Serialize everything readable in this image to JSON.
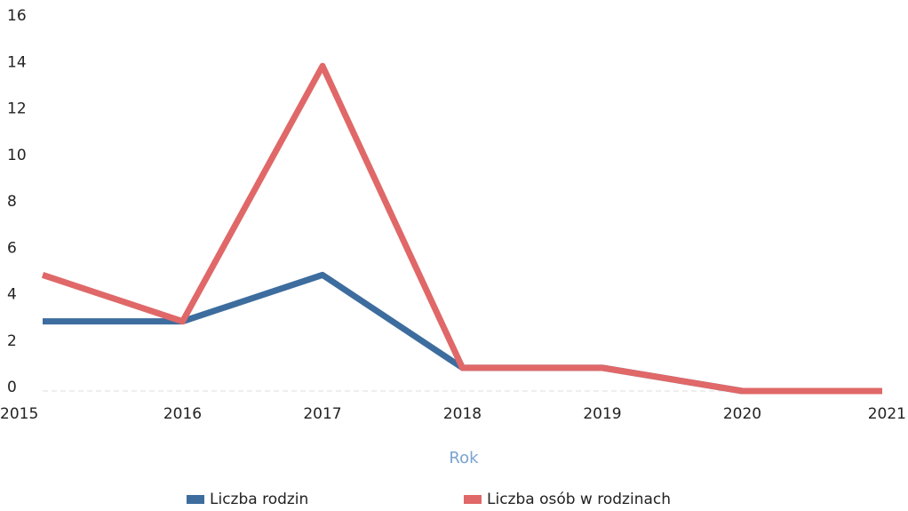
{
  "chart_data": {
    "type": "line",
    "categories": [
      "2015",
      "2016",
      "2017",
      "2018",
      "2019",
      "2020",
      "2021"
    ],
    "series": [
      {
        "name": "Liczba rodzin",
        "color": "#3d6d9e",
        "values": [
          3,
          3,
          5,
          1,
          1,
          0,
          0
        ]
      },
      {
        "name": "Liczba osób w rodzinach",
        "color": "#e06868",
        "values": [
          5,
          3,
          14,
          1,
          1,
          0,
          0
        ]
      }
    ],
    "x_label": "Rok",
    "ylim": [
      0,
      16
    ],
    "yticks": [
      0,
      2,
      4,
      6,
      8,
      10,
      12,
      14,
      16
    ]
  }
}
